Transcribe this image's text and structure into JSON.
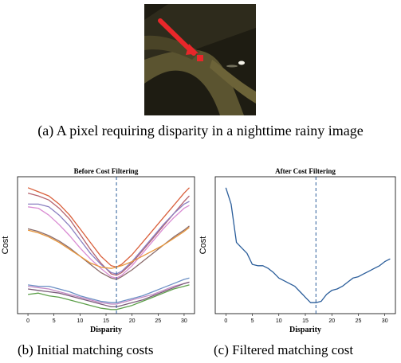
{
  "captions": {
    "a": "(a) A pixel requiring disparity in a nighttime rainy image",
    "b": "(b) Initial matching costs",
    "c": "(c) Filtered matching cost"
  },
  "colors": {
    "photo_dark": "#1e1c12",
    "photo_road": "#5b5430",
    "arrow": "#e8272a",
    "dashed_line": "#2a5d9a",
    "frame": "#000000"
  },
  "chart_data": [
    {
      "type": "line",
      "title": "Before Cost Filtering",
      "xlabel": "Disparity",
      "ylabel": "Cost",
      "xlim": [
        -2,
        32
      ],
      "ylim": [
        0,
        100
      ],
      "x_ticks": [
        0,
        5,
        10,
        15,
        20,
        25,
        30
      ],
      "marker_x": 17,
      "x": [
        0,
        2,
        4,
        6,
        8,
        10,
        12,
        14,
        16,
        17,
        18,
        20,
        22,
        24,
        26,
        28,
        30,
        31
      ],
      "series": [
        {
          "color": "#d95f3b",
          "values": [
            92,
            89,
            86,
            80,
            72,
            62,
            52,
            42,
            35,
            34,
            36,
            43,
            52,
            61,
            70,
            79,
            88,
            92
          ]
        },
        {
          "color": "#b5636e",
          "values": [
            88,
            86,
            83,
            77,
            69,
            58,
            47,
            37,
            29,
            28,
            30,
            37,
            46,
            55,
            64,
            73,
            82,
            86
          ]
        },
        {
          "color": "#8a7fc0",
          "values": [
            80,
            80,
            78,
            72,
            64,
            54,
            44,
            36,
            30,
            29,
            31,
            38,
            47,
            56,
            65,
            73,
            80,
            82
          ]
        },
        {
          "color": "#d98bd2",
          "values": [
            78,
            77,
            72,
            65,
            57,
            48,
            40,
            33,
            27,
            26,
            28,
            35,
            44,
            53,
            62,
            70,
            77,
            79
          ]
        },
        {
          "color": "#8a6b6b",
          "values": [
            62,
            60,
            57,
            53,
            48,
            42,
            36,
            30,
            26,
            25,
            27,
            32,
            38,
            44,
            50,
            56,
            61,
            64
          ]
        },
        {
          "color": "#e8963a",
          "values": [
            61,
            59,
            56,
            52,
            47,
            42,
            37,
            34,
            33,
            34,
            35,
            38,
            42,
            46,
            50,
            55,
            60,
            63
          ]
        },
        {
          "color": "#6b8fc4",
          "values": [
            21,
            20,
            20,
            18,
            16,
            13,
            11,
            9,
            8,
            8,
            9,
            11,
            13,
            16,
            19,
            22,
            25,
            26
          ]
        },
        {
          "color": "#c48ac4",
          "values": [
            20,
            19,
            18,
            16,
            14,
            12,
            10,
            8,
            7,
            7,
            8,
            10,
            12,
            14,
            17,
            20,
            22,
            23
          ]
        },
        {
          "color": "#7a5b7a",
          "values": [
            18,
            17,
            16,
            15,
            13,
            11,
            9,
            7,
            5,
            5,
            6,
            8,
            10,
            13,
            16,
            19,
            22,
            23
          ]
        },
        {
          "color": "#5ea04b",
          "values": [
            14,
            15,
            13,
            12,
            10,
            8,
            6,
            4,
            3,
            3,
            4,
            6,
            9,
            12,
            15,
            18,
            20,
            21
          ]
        }
      ]
    },
    {
      "type": "line",
      "title": "After Cost Filtering",
      "xlabel": "Disparity",
      "ylabel": "Cost",
      "xlim": [
        -2,
        32
      ],
      "ylim": [
        0,
        100
      ],
      "x_ticks": [
        0,
        5,
        10,
        15,
        20,
        25,
        30
      ],
      "marker_x": 17,
      "x": [
        0,
        1,
        2,
        3,
        4,
        5,
        6,
        7,
        8,
        9,
        10,
        11,
        12,
        13,
        14,
        15,
        16,
        17,
        18,
        19,
        20,
        21,
        22,
        23,
        24,
        25,
        26,
        27,
        28,
        29,
        30,
        31
      ],
      "series": [
        {
          "color": "#2a5d9a",
          "values": [
            92,
            80,
            52,
            48,
            44,
            36,
            35,
            35,
            33,
            30,
            26,
            24,
            22,
            20,
            16,
            12,
            8,
            8,
            9,
            14,
            17,
            18,
            20,
            23,
            26,
            27,
            29,
            31,
            33,
            35,
            38,
            40
          ]
        }
      ]
    }
  ]
}
